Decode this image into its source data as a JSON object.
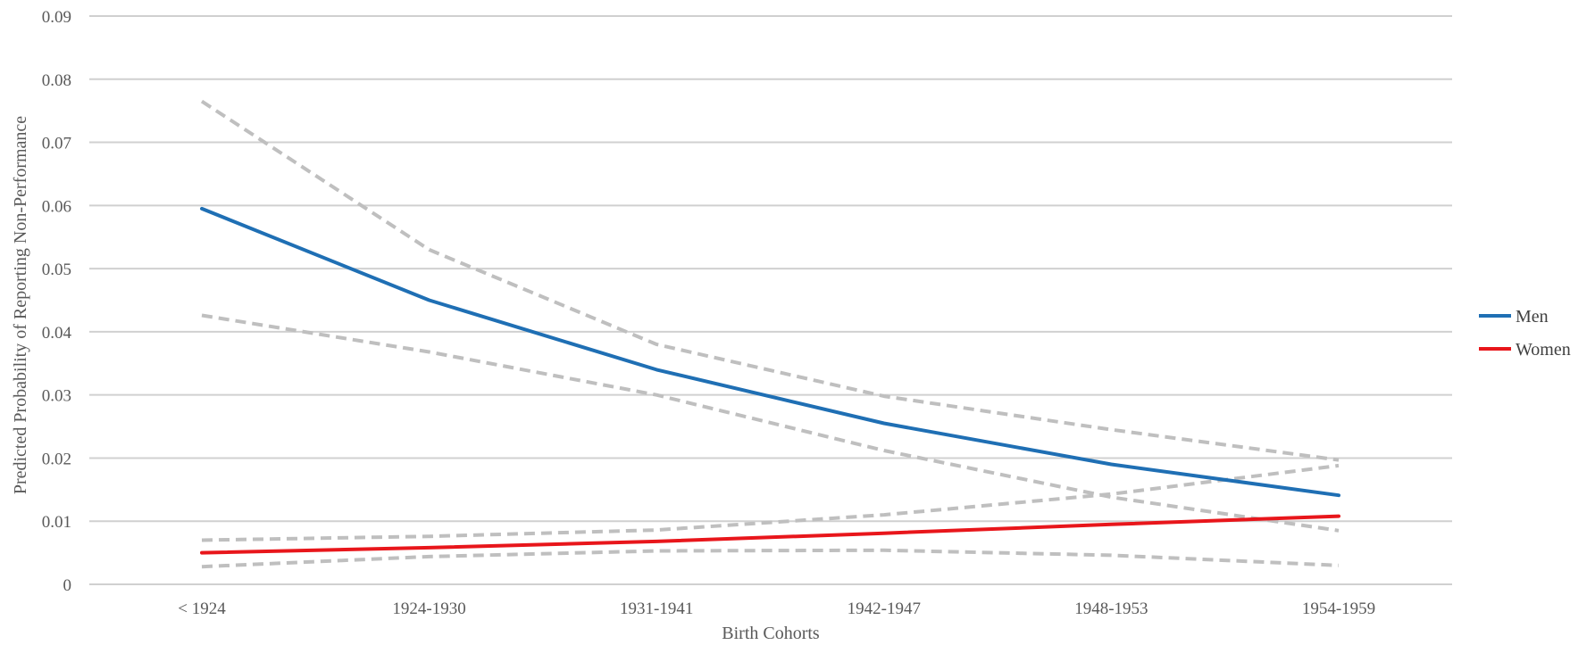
{
  "chart_data": {
    "type": "line",
    "title": "",
    "xlabel": "Birth Cohorts",
    "ylabel": "Predicted Probability of Reporting Non-Performance",
    "categories": [
      "< 1924",
      "1924-1930",
      "1931-1941",
      "1942-1947",
      "1948-1953",
      "1954-1959"
    ],
    "ylim": [
      0,
      0.09
    ],
    "yticks": [
      "0",
      "0.01",
      "0.02",
      "0.03",
      "0.04",
      "0.05",
      "0.06",
      "0.07",
      "0.08",
      "0.09"
    ],
    "grid": true,
    "legend_position": "right",
    "series": [
      {
        "name": "Men",
        "color": "#1f6fb4",
        "style": "solid",
        "values": [
          0.0595,
          0.045,
          0.034,
          0.0255,
          0.019,
          0.0141
        ]
      },
      {
        "name": "Women",
        "color": "#e8161b",
        "style": "solid",
        "values": [
          0.005,
          0.0058,
          0.0068,
          0.0081,
          0.0095,
          0.0108
        ]
      },
      {
        "color": "#bfbfbf",
        "style": "dashed",
        "values": [
          0.0765,
          0.053,
          0.038,
          0.0298,
          0.0245,
          0.0197
        ]
      },
      {
        "color": "#bfbfbf",
        "style": "dashed",
        "values": [
          0.0426,
          0.0368,
          0.03,
          0.0212,
          0.0138,
          0.0085
        ]
      },
      {
        "color": "#bfbfbf",
        "style": "dashed",
        "values": [
          0.007,
          0.0076,
          0.0086,
          0.011,
          0.0143,
          0.0188
        ]
      },
      {
        "color": "#bfbfbf",
        "style": "dashed",
        "values": [
          0.0028,
          0.0044,
          0.0053,
          0.0054,
          0.0046,
          0.003
        ]
      }
    ]
  }
}
